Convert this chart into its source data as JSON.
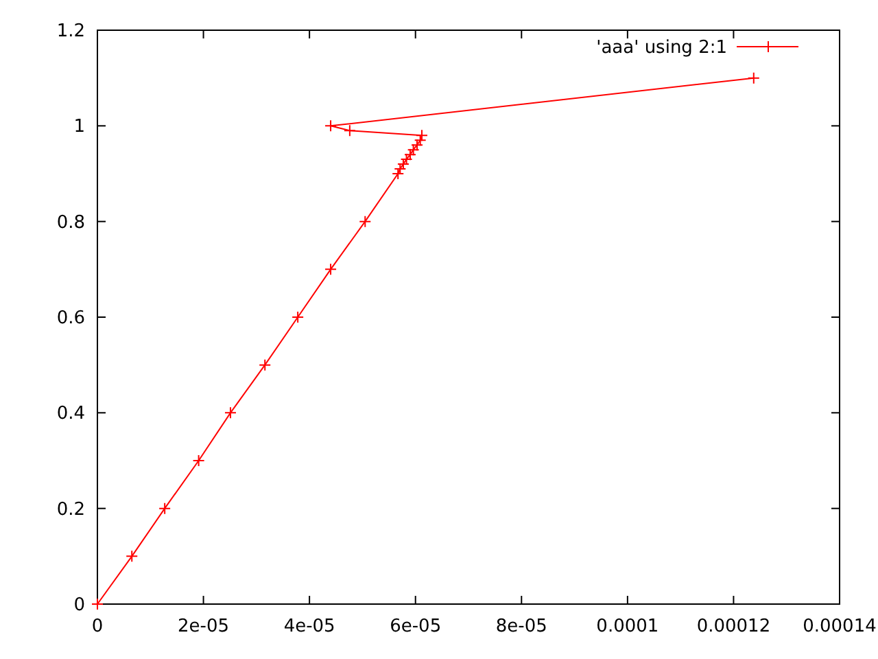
{
  "chart_data": {
    "type": "line",
    "legend": "top right",
    "marker": "cross",
    "line_style": "solid",
    "grid": false,
    "x": [
      0,
      6.5e-06,
      1.27e-05,
      1.91e-05,
      2.51e-05,
      3.16e-05,
      3.78e-05,
      4.4e-05,
      5.05e-05,
      5.67e-05,
      5.71e-05,
      5.77e-05,
      5.83e-05,
      5.9e-05,
      5.96e-05,
      6.03e-05,
      6.09e-05,
      6.12e-05,
      4.76e-05,
      4.4e-05,
      0.0001238
    ],
    "series": [
      {
        "name": "'aaa' using 2:1",
        "color": "#ff0000",
        "values": [
          0,
          0.1,
          0.2,
          0.3,
          0.4,
          0.5,
          0.6,
          0.7,
          0.8,
          0.9,
          0.91,
          0.92,
          0.93,
          0.94,
          0.95,
          0.96,
          0.97,
          0.98,
          0.99,
          1.0,
          1.1
        ]
      }
    ],
    "xlim": [
      0,
      0.00014
    ],
    "xticks": [
      0,
      "2e-05",
      "4e-05",
      "6e-05",
      "8e-05",
      0.0001,
      0.00012,
      0.00014
    ],
    "ylim": [
      0,
      1.2
    ],
    "yticks": [
      0,
      0.2,
      0.4,
      0.6,
      0.8,
      1,
      1.2
    ]
  }
}
